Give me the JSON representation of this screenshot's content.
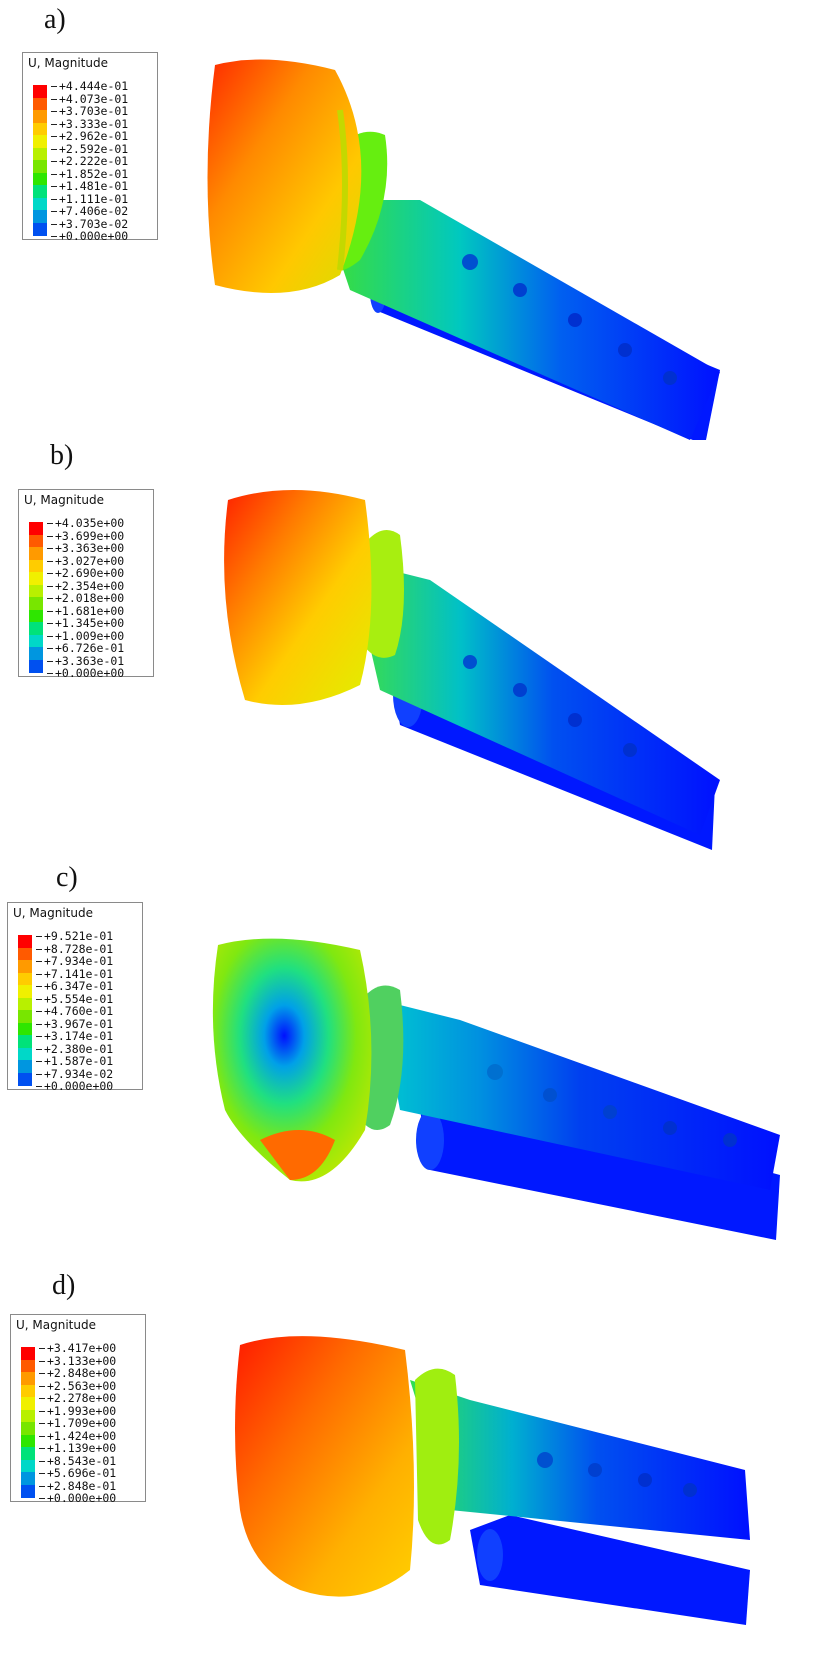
{
  "legend_title": "U, Magnitude",
  "colormap": [
    "#ff0000",
    "#ff5a00",
    "#ff9a00",
    "#ffcc00",
    "#f0f000",
    "#b8f000",
    "#78e600",
    "#2ee600",
    "#00e27a",
    "#00d8c8",
    "#0096e0",
    "#0050f0",
    "#0000ff"
  ],
  "panels": [
    {
      "label": "a)",
      "values": [
        "+4.444e-01",
        "+4.073e-01",
        "+3.703e-01",
        "+3.333e-01",
        "+2.962e-01",
        "+2.592e-01",
        "+2.222e-01",
        "+1.852e-01",
        "+1.481e-01",
        "+1.111e-01",
        "+7.406e-02",
        "+3.703e-02",
        "+0.000e+00"
      ]
    },
    {
      "label": "b)",
      "values": [
        "+4.035e+00",
        "+3.699e+00",
        "+3.363e+00",
        "+3.027e+00",
        "+2.690e+00",
        "+2.354e+00",
        "+2.018e+00",
        "+1.681e+00",
        "+1.345e+00",
        "+1.009e+00",
        "+6.726e-01",
        "+3.363e-01",
        "+0.000e+00"
      ]
    },
    {
      "label": "c)",
      "values": [
        "+9.521e-01",
        "+8.728e-01",
        "+7.934e-01",
        "+7.141e-01",
        "+6.347e-01",
        "+5.554e-01",
        "+4.760e-01",
        "+3.967e-01",
        "+3.174e-01",
        "+2.380e-01",
        "+1.587e-01",
        "+7.934e-02",
        "+0.000e+00"
      ]
    },
    {
      "label": "d)",
      "values": [
        "+3.417e+00",
        "+3.133e+00",
        "+2.848e+00",
        "+2.563e+00",
        "+2.278e+00",
        "+1.993e+00",
        "+1.709e+00",
        "+1.424e+00",
        "+1.139e+00",
        "+8.543e-01",
        "+5.696e-01",
        "+2.848e-01",
        "+0.000e+00"
      ]
    }
  ]
}
